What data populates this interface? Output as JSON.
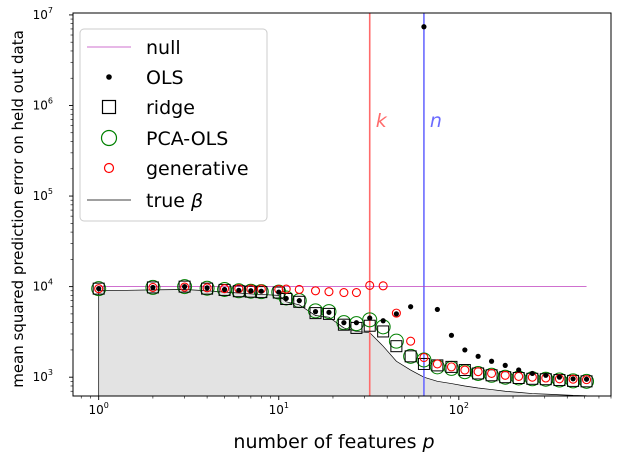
{
  "chart_data": {
    "type": "scatter",
    "xscale": "log",
    "yscale": "log",
    "xlim": [
      0.72,
      700
    ],
    "ylim": [
      620,
      10500000
    ],
    "xlabel": "number of features",
    "xlabel_var": "p",
    "ylabel": "mean squared prediction error on held out data",
    "x_ticks": [
      {
        "value": 1,
        "base": "10",
        "exp": "0"
      },
      {
        "value": 10,
        "base": "10",
        "exp": "1"
      },
      {
        "value": 100,
        "base": "10",
        "exp": "2"
      }
    ],
    "y_ticks": [
      {
        "value": 1000,
        "base": "10",
        "exp": "3"
      },
      {
        "value": 10000,
        "base": "10",
        "exp": "4"
      },
      {
        "value": 100000,
        "base": "10",
        "exp": "5"
      },
      {
        "value": 1000000,
        "base": "10",
        "exp": "6"
      },
      {
        "value": 10000000,
        "base": "10",
        "exp": "7"
      }
    ],
    "legend_position": "top-left",
    "colors": {
      "null": "#bf40bf",
      "ols": "#000000",
      "ridge": "#000000",
      "pca": "#008000",
      "generative": "#ff0000",
      "true_beta": "#000000",
      "fill": "#e3e3e3",
      "k_line": "#ff6b6b",
      "n_line": "#6b6bff"
    },
    "vlines": [
      {
        "label": "k",
        "x": 32,
        "color": "#ff6b6b"
      },
      {
        "label": "n",
        "x": 64,
        "color": "#6b6bff"
      }
    ],
    "series": [
      {
        "name": "null",
        "style": "line",
        "x": [
          1,
          512
        ],
        "y": [
          10000,
          10000
        ]
      },
      {
        "name": "OLS",
        "style": "dot",
        "x": [
          1,
          2,
          3,
          4,
          5,
          6,
          7,
          8,
          10,
          11,
          13,
          16,
          19,
          23,
          27,
          32,
          38,
          45,
          54,
          64,
          76,
          91,
          108,
          128,
          152,
          181,
          215,
          256,
          304,
          362,
          431,
          512
        ],
        "y": [
          9500,
          9800,
          10000,
          9700,
          9300,
          9100,
          9000,
          8900,
          8700,
          7400,
          7000,
          5300,
          5200,
          4000,
          4000,
          4500,
          4200,
          5000,
          6000,
          7400000,
          5600,
          2900,
          2000,
          1700,
          1500,
          1350,
          1200,
          1100,
          1050,
          1000,
          960,
          950
        ]
      },
      {
        "name": "ridge",
        "style": "square",
        "x": [
          1,
          2,
          3,
          4,
          5,
          6,
          7,
          8,
          10,
          11,
          13,
          16,
          19,
          23,
          27,
          32,
          38,
          45,
          54,
          64,
          76,
          91,
          108,
          128,
          152,
          181,
          215,
          256,
          304,
          362,
          431,
          512
        ],
        "y": [
          9500,
          9800,
          10000,
          9500,
          9200,
          8900,
          8800,
          8700,
          8600,
          7300,
          6800,
          5100,
          5000,
          3800,
          3500,
          3700,
          3200,
          2200,
          1700,
          1400,
          1350,
          1300,
          1200,
          1100,
          1050,
          1000,
          980,
          960,
          950,
          930,
          910,
          900
        ]
      },
      {
        "name": "PCA-OLS",
        "style": "circle",
        "x": [
          1,
          2,
          3,
          4,
          5,
          6,
          7,
          8,
          10,
          11,
          13,
          16,
          19,
          23,
          27,
          32,
          38,
          45,
          54,
          64,
          76,
          91,
          108,
          128,
          152,
          181,
          215,
          256,
          304,
          362,
          431,
          512
        ],
        "y": [
          9500,
          9800,
          10000,
          9600,
          9300,
          9000,
          8900,
          8800,
          8700,
          7500,
          7000,
          5400,
          5300,
          4000,
          3900,
          4300,
          3600,
          2500,
          1700,
          1550,
          1300,
          1250,
          1150,
          1100,
          1050,
          1000,
          980,
          960,
          950,
          930,
          910,
          900
        ]
      },
      {
        "name": "generative",
        "style": "open-circle",
        "x": [
          1,
          2,
          3,
          4,
          5,
          6,
          7,
          8,
          10,
          11,
          13,
          16,
          19,
          23,
          27,
          32,
          38,
          45,
          54,
          64,
          76,
          91,
          108,
          128,
          152,
          181,
          215,
          256,
          304,
          362,
          431,
          512
        ],
        "y": [
          9500,
          9800,
          9900,
          9700,
          9500,
          9500,
          9400,
          9400,
          9300,
          9400,
          9300,
          9000,
          8800,
          8600,
          8600,
          10300,
          10200,
          5100,
          2500,
          1650,
          1400,
          1300,
          1200,
          1150,
          1100,
          1050,
          1020,
          1000,
          980,
          960,
          950,
          940
        ]
      },
      {
        "name": "true",
        "name_var": "β",
        "style": "line",
        "x": [
          1,
          2,
          3,
          4,
          5,
          6,
          7,
          8,
          10,
          11,
          13,
          16,
          19,
          23,
          27,
          32,
          38,
          45,
          54,
          64,
          76,
          91,
          108,
          128,
          152,
          181,
          215,
          256,
          304,
          362,
          431,
          512
        ],
        "y": [
          9000,
          9200,
          9300,
          9000,
          8700,
          8500,
          8300,
          8200,
          8000,
          6800,
          6300,
          4800,
          4600,
          3500,
          3200,
          3100,
          2200,
          1500,
          1200,
          1000,
          900,
          850,
          800,
          760,
          730,
          700,
          680,
          660,
          650,
          640,
          630,
          625
        ]
      }
    ]
  }
}
